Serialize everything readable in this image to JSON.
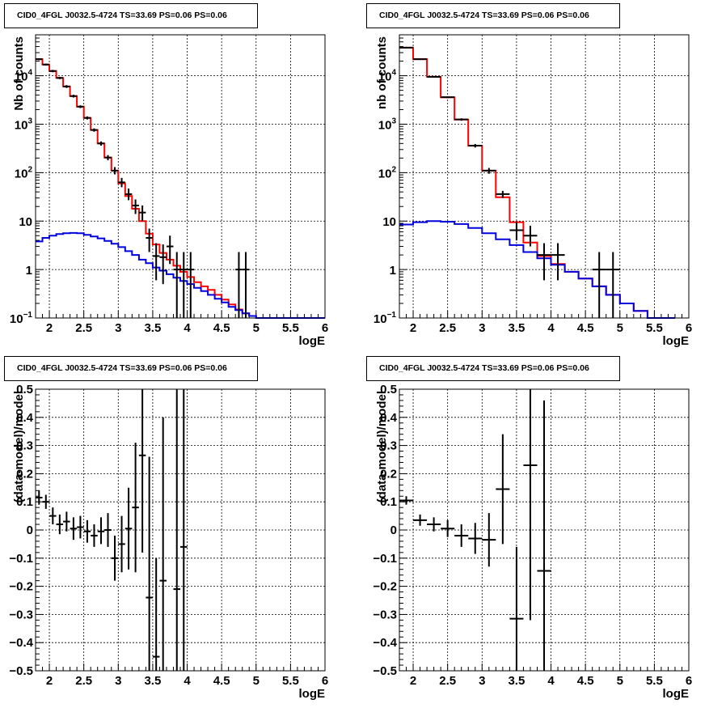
{
  "chart_data": [
    {
      "type": "line",
      "title": "CID0_4FGL J0032.5-4724 TS=33.69 PS=0.06 PS=0.06",
      "xlabel": "logE",
      "ylabel": "Nb of counts",
      "xlim": [
        1.8,
        6
      ],
      "ylim": [
        0.1,
        70000
      ],
      "ylog": true,
      "grid": true,
      "x_ticks": [
        "2",
        "2.5",
        "3",
        "3.5",
        "4",
        "4.5",
        "5",
        "5.5",
        "6"
      ],
      "y_ticks": [
        {
          "v": 0.1,
          "label": "10",
          "exp": "−1"
        },
        {
          "v": 1,
          "label": "1",
          "exp": ""
        },
        {
          "v": 10,
          "label": "10",
          "exp": ""
        },
        {
          "v": 100,
          "label": "10",
          "exp": "2"
        },
        {
          "v": 1000,
          "label": "10",
          "exp": "3"
        },
        {
          "v": 10000,
          "label": "10",
          "exp": "4"
        }
      ],
      "bin_edges": [
        1.8,
        1.9,
        2.0,
        2.1,
        2.2,
        2.3,
        2.4,
        2.5,
        2.6,
        2.7,
        2.8,
        2.9,
        3.0,
        3.1,
        3.2,
        3.3,
        3.4,
        3.5,
        3.6,
        3.7,
        3.8,
        3.9,
        4.0,
        4.1,
        4.2,
        4.3,
        4.4,
        4.5,
        4.6,
        4.7,
        4.8,
        4.9,
        5.0,
        5.1,
        5.2,
        5.3,
        5.4,
        5.5,
        5.6,
        5.7,
        5.8,
        5.9,
        6.0
      ],
      "series": [
        {
          "color": "#ff0000",
          "values": [
            22000,
            17000,
            12500,
            9000,
            6000,
            3800,
            2300,
            1350,
            760,
            400,
            205,
            110,
            60,
            33,
            18,
            10,
            5.5,
            3.3,
            2.2,
            1.6,
            1.2,
            0.9,
            0.7,
            0.55,
            0.45,
            0.38,
            0.3,
            0.24,
            0.19,
            0.15,
            0.125,
            0.11,
            0.1,
            0.1,
            0.1,
            0.1,
            0.1,
            0.1,
            0.1,
            0.1,
            0.1,
            0.1
          ]
        },
        {
          "color": "#0000dd",
          "values": [
            3.8,
            4.5,
            5.0,
            5.4,
            5.6,
            5.7,
            5.6,
            5.2,
            4.8,
            4.4,
            3.9,
            3.4,
            2.9,
            2.4,
            2.0,
            1.6,
            1.35,
            1.1,
            0.95,
            0.8,
            0.68,
            0.58,
            0.5,
            0.42,
            0.36,
            0.3,
            0.25,
            0.21,
            0.17,
            0.145,
            0.125,
            0.11,
            0.1,
            0.1,
            0.1,
            0.1,
            0.1,
            0.1,
            0.1,
            0.1,
            0.1,
            0.1
          ]
        }
      ],
      "points": [
        {
          "x": 1.85,
          "y": 22000,
          "ylo": 21000,
          "yhi": 23000
        },
        {
          "x": 1.95,
          "y": 17000,
          "ylo": 16200,
          "yhi": 17800
        },
        {
          "x": 2.05,
          "y": 12500,
          "ylo": 11800,
          "yhi": 13200
        },
        {
          "x": 2.15,
          "y": 9000,
          "ylo": 8500,
          "yhi": 9500
        },
        {
          "x": 2.25,
          "y": 6000,
          "ylo": 5600,
          "yhi": 6400
        },
        {
          "x": 2.35,
          "y": 3800,
          "ylo": 3550,
          "yhi": 4050
        },
        {
          "x": 2.45,
          "y": 2300,
          "ylo": 2150,
          "yhi": 2450
        },
        {
          "x": 2.55,
          "y": 1350,
          "ylo": 1250,
          "yhi": 1450
        },
        {
          "x": 2.65,
          "y": 760,
          "ylo": 700,
          "yhi": 820
        },
        {
          "x": 2.75,
          "y": 400,
          "ylo": 360,
          "yhi": 440
        },
        {
          "x": 2.85,
          "y": 205,
          "ylo": 180,
          "yhi": 230
        },
        {
          "x": 2.95,
          "y": 110,
          "ylo": 92,
          "yhi": 130
        },
        {
          "x": 3.05,
          "y": 63,
          "ylo": 50,
          "yhi": 78
        },
        {
          "x": 3.15,
          "y": 36,
          "ylo": 27,
          "yhi": 47
        },
        {
          "x": 3.25,
          "y": 21,
          "ylo": 14,
          "yhi": 28
        },
        {
          "x": 3.35,
          "y": 15,
          "ylo": 10,
          "yhi": 21
        },
        {
          "x": 3.45,
          "y": 4.5,
          "ylo": 2.3,
          "yhi": 7
        },
        {
          "x": 3.55,
          "y": 1.9,
          "ylo": 0.6,
          "yhi": 3.5
        },
        {
          "x": 3.65,
          "y": 1.8,
          "ylo": 0.5,
          "yhi": 3.3
        },
        {
          "x": 3.75,
          "y": 3.0,
          "ylo": 1.3,
          "yhi": 5.0
        },
        {
          "x": 3.85,
          "y": 1.0,
          "ylo": 0.1,
          "yhi": 2.3
        },
        {
          "x": 3.95,
          "y": 1.0,
          "ylo": 0.1,
          "yhi": 2.3
        },
        {
          "x": 4.05,
          "y": 1.0,
          "ylo": 0.1,
          "yhi": 2.3
        },
        {
          "x": 4.75,
          "y": 1.0,
          "ylo": 0.1,
          "yhi": 2.3
        },
        {
          "x": 4.85,
          "y": 1.0,
          "ylo": 0.1,
          "yhi": 2.3
        }
      ]
    },
    {
      "type": "line",
      "title": "CID0_4FGL J0032.5-4724 TS=33.69 PS=0.06 PS=0.06",
      "xlabel": "logE",
      "ylabel": "nb of counts",
      "xlim": [
        1.8,
        6
      ],
      "ylim": [
        0.1,
        70000
      ],
      "ylog": true,
      "grid": true,
      "x_ticks": [
        "2",
        "2.5",
        "3",
        "3.5",
        "4",
        "4.5",
        "5",
        "5.5",
        "6"
      ],
      "y_ticks": [
        {
          "v": 0.1,
          "label": "10",
          "exp": "−1"
        },
        {
          "v": 1,
          "label": "1",
          "exp": ""
        },
        {
          "v": 10,
          "label": "10",
          "exp": ""
        },
        {
          "v": 100,
          "label": "10",
          "exp": "2"
        },
        {
          "v": 1000,
          "label": "10",
          "exp": "3"
        },
        {
          "v": 10000,
          "label": "10",
          "exp": "4"
        }
      ],
      "bin_edges": [
        1.8,
        2.0,
        2.2,
        2.4,
        2.6,
        2.8,
        3.0,
        3.2,
        3.4,
        3.6,
        3.8,
        4.0,
        4.2,
        4.4,
        4.6,
        4.8,
        5.0,
        5.2,
        5.4,
        5.6,
        5.8,
        6.0
      ],
      "series": [
        {
          "color": "#ff0000",
          "values": [
            38000,
            22000,
            9500,
            3600,
            1250,
            360,
            110,
            31,
            9.5,
            3.6,
            1.9,
            1.3,
            0.9,
            0.65,
            0.45,
            0.3,
            0.2,
            0.14,
            0.1,
            0.1
          ]
        },
        {
          "color": "#0000dd",
          "values": [
            8.5,
            9.5,
            10.0,
            9.7,
            8.7,
            7.2,
            5.6,
            4.2,
            3.2,
            2.3,
            1.7,
            1.25,
            0.9,
            0.65,
            0.45,
            0.3,
            0.2,
            0.14,
            0.1,
            0.1
          ]
        }
      ],
      "points": [
        {
          "x": 1.9,
          "y": 38000,
          "ylo": 37000,
          "yhi": 39000
        },
        {
          "x": 2.1,
          "y": 22000,
          "ylo": 21500,
          "yhi": 22500
        },
        {
          "x": 2.3,
          "y": 9500,
          "ylo": 9200,
          "yhi": 9800
        },
        {
          "x": 2.5,
          "y": 3600,
          "ylo": 3450,
          "yhi": 3750
        },
        {
          "x": 2.7,
          "y": 1250,
          "ylo": 1180,
          "yhi": 1320
        },
        {
          "x": 2.9,
          "y": 360,
          "ylo": 330,
          "yhi": 390
        },
        {
          "x": 3.1,
          "y": 110,
          "ylo": 95,
          "yhi": 125
        },
        {
          "x": 3.3,
          "y": 36,
          "ylo": 30,
          "yhi": 42
        },
        {
          "x": 3.5,
          "y": 6.5,
          "ylo": 4,
          "yhi": 9.5
        },
        {
          "x": 3.7,
          "y": 5.0,
          "ylo": 3,
          "yhi": 8
        },
        {
          "x": 3.9,
          "y": 2.0,
          "ylo": 0.6,
          "yhi": 3.5
        },
        {
          "x": 4.1,
          "y": 2.0,
          "ylo": 0.6,
          "yhi": 3.5
        },
        {
          "x": 4.7,
          "y": 1.0,
          "ylo": 0.1,
          "yhi": 2.3
        },
        {
          "x": 4.9,
          "y": 1.0,
          "ylo": 0.1,
          "yhi": 2.3
        }
      ]
    },
    {
      "type": "scatter",
      "title": "CID0_4FGL J0032.5-4724 TS=33.69 PS=0.06 PS=0.06",
      "xlabel": "logE",
      "ylabel": "(data-model)/model",
      "xlim": [
        1.8,
        6
      ],
      "ylim": [
        -0.5,
        0.5
      ],
      "grid": true,
      "x_ticks": [
        "2",
        "2.5",
        "3",
        "3.5",
        "4",
        "4.5",
        "5",
        "5.5",
        "6"
      ],
      "y_ticks": [
        "−0.5",
        "−0.4",
        "−0.3",
        "−0.2",
        "−0.1",
        "0",
        "0.1",
        "0.2",
        "0.3",
        "0.4",
        "0.5"
      ],
      "bin_width": 0.1,
      "points": [
        {
          "x": 1.85,
          "y": 0.115,
          "ylo": 0.09,
          "yhi": 0.14
        },
        {
          "x": 1.95,
          "y": 0.1,
          "ylo": 0.075,
          "yhi": 0.125
        },
        {
          "x": 2.05,
          "y": 0.05,
          "ylo": 0.02,
          "yhi": 0.08
        },
        {
          "x": 2.15,
          "y": 0.02,
          "ylo": -0.015,
          "yhi": 0.055
        },
        {
          "x": 2.25,
          "y": 0.03,
          "ylo": -0.005,
          "yhi": 0.065
        },
        {
          "x": 2.35,
          "y": 0.005,
          "ylo": -0.035,
          "yhi": 0.045
        },
        {
          "x": 2.45,
          "y": 0.01,
          "ylo": -0.03,
          "yhi": 0.05
        },
        {
          "x": 2.55,
          "y": -0.005,
          "ylo": -0.045,
          "yhi": 0.035
        },
        {
          "x": 2.65,
          "y": -0.02,
          "ylo": -0.06,
          "yhi": 0.02
        },
        {
          "x": 2.75,
          "y": -0.005,
          "ylo": -0.05,
          "yhi": 0.045
        },
        {
          "x": 2.85,
          "y": 0.0,
          "ylo": -0.06,
          "yhi": 0.06
        },
        {
          "x": 2.95,
          "y": -0.1,
          "ylo": -0.18,
          "yhi": -0.02
        },
        {
          "x": 3.05,
          "y": -0.05,
          "ylo": -0.15,
          "yhi": 0.05
        },
        {
          "x": 3.15,
          "y": 0.005,
          "ylo": -0.14,
          "yhi": 0.15
        },
        {
          "x": 3.25,
          "y": 0.08,
          "ylo": -0.15,
          "yhi": 0.31
        },
        {
          "x": 3.35,
          "y": 0.265,
          "ylo": -0.08,
          "yhi": 0.5
        },
        {
          "x": 3.45,
          "y": -0.24,
          "ylo": -0.5,
          "yhi": 0.26
        },
        {
          "x": 3.55,
          "y": -0.45,
          "ylo": -0.5,
          "yhi": -0.1
        },
        {
          "x": 3.65,
          "y": -0.18,
          "ylo": -0.5,
          "yhi": 0.4
        },
        {
          "x": 3.85,
          "y": -0.21,
          "ylo": -0.5,
          "yhi": 0.5
        },
        {
          "x": 3.95,
          "y": -0.06,
          "ylo": -0.5,
          "yhi": 0.5
        }
      ]
    },
    {
      "type": "scatter",
      "title": "CID0_4FGL J0032.5-4724 TS=33.69 PS=0.06 PS=0.06",
      "xlabel": "logE",
      "ylabel": "(data-model)/model",
      "xlim": [
        1.8,
        6
      ],
      "ylim": [
        -0.5,
        0.5
      ],
      "grid": true,
      "x_ticks": [
        "2",
        "2.5",
        "3",
        "3.5",
        "4",
        "4.5",
        "5",
        "5.5",
        "6"
      ],
      "y_ticks": [
        "−0.5",
        "−0.4",
        "−0.3",
        "−0.2",
        "−0.1",
        "0",
        "0.1",
        "0.2",
        "0.3",
        "0.4",
        "0.5"
      ],
      "bin_width": 0.2,
      "points": [
        {
          "x": 1.9,
          "y": 0.105,
          "ylo": 0.09,
          "yhi": 0.12
        },
        {
          "x": 2.1,
          "y": 0.035,
          "ylo": 0.015,
          "yhi": 0.055
        },
        {
          "x": 2.3,
          "y": 0.02,
          "ylo": -0.005,
          "yhi": 0.045
        },
        {
          "x": 2.5,
          "y": 0.005,
          "ylo": -0.025,
          "yhi": 0.035
        },
        {
          "x": 2.7,
          "y": -0.02,
          "ylo": -0.06,
          "yhi": 0.02
        },
        {
          "x": 2.9,
          "y": -0.03,
          "ylo": -0.085,
          "yhi": 0.025
        },
        {
          "x": 3.1,
          "y": -0.035,
          "ylo": -0.13,
          "yhi": 0.06
        },
        {
          "x": 3.3,
          "y": 0.145,
          "ylo": -0.05,
          "yhi": 0.34
        },
        {
          "x": 3.5,
          "y": -0.315,
          "ylo": -0.5,
          "yhi": -0.06
        },
        {
          "x": 3.7,
          "y": 0.23,
          "ylo": -0.32,
          "yhi": 0.5
        },
        {
          "x": 3.9,
          "y": -0.145,
          "ylo": -0.5,
          "yhi": 0.46
        }
      ]
    }
  ]
}
